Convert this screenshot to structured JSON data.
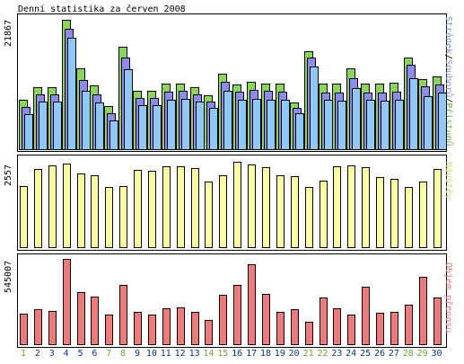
{
  "title": "Denní statistika za červen 2008",
  "colors": {
    "access": "#88d65a",
    "files": "#8c8cf0",
    "hits": "#8cc8f8",
    "visits": "#ffff99",
    "bytes": "#f07a7a",
    "weekend": "#66aa22",
    "weekday": "#003399"
  },
  "chart_data": [
    {
      "type": "bar",
      "categories": [
        "1",
        "2",
        "3",
        "4",
        "5",
        "6",
        "7",
        "8",
        "9",
        "10",
        "11",
        "12",
        "13",
        "14",
        "15",
        "16",
        "17",
        "18",
        "19",
        "20",
        "21",
        "22",
        "23",
        "24",
        "25",
        "26",
        "27",
        "28",
        "29",
        "30"
      ],
      "ymax_label": "21867",
      "ylim": [
        0,
        21867
      ],
      "series": [
        {
          "name": "Přístupů",
          "values": [
            8400,
            10500,
            10500,
            21867,
            13700,
            10900,
            7400,
            17400,
            9900,
            9900,
            11100,
            11100,
            10600,
            9200,
            12900,
            11000,
            11400,
            11200,
            11100,
            8000,
            16600,
            11100,
            11100,
            13700,
            11100,
            11100,
            11300,
            15600,
            11900,
            12300
          ]
        },
        {
          "name": "Souborů",
          "values": [
            7200,
            9300,
            9400,
            20400,
            11800,
            9300,
            6200,
            15500,
            8700,
            8700,
            9800,
            9900,
            9400,
            8200,
            11500,
            9800,
            10100,
            9900,
            9800,
            7100,
            15500,
            9700,
            9700,
            12100,
            9700,
            9700,
            9800,
            14400,
            10700,
            11000
          ]
        },
        {
          "name": "Stránek",
          "values": [
            6000,
            8100,
            8100,
            18800,
            9900,
            8000,
            5000,
            13600,
            7500,
            7500,
            8500,
            8600,
            8200,
            7100,
            9900,
            8400,
            8600,
            8500,
            8400,
            6200,
            14000,
            8400,
            8300,
            10400,
            8400,
            8300,
            8500,
            12000,
            9100,
            9700
          ]
        }
      ]
    },
    {
      "type": "bar",
      "categories": [
        "1",
        "2",
        "3",
        "4",
        "5",
        "6",
        "7",
        "8",
        "9",
        "10",
        "11",
        "12",
        "13",
        "14",
        "15",
        "16",
        "17",
        "18",
        "19",
        "20",
        "21",
        "22",
        "23",
        "24",
        "25",
        "26",
        "27",
        "28",
        "29",
        "30"
      ],
      "ymax_label": "2557",
      "ylim": [
        0,
        2557
      ],
      "series": [
        {
          "name": "Návštěv",
          "values": [
            1850,
            2350,
            2450,
            2500,
            2200,
            2150,
            1800,
            1830,
            2330,
            2300,
            2430,
            2430,
            2380,
            1960,
            2150,
            2557,
            2480,
            2400,
            2170,
            2130,
            1800,
            1990,
            2430,
            2450,
            2400,
            2100,
            2040,
            1800,
            1960,
            2350
          ]
        }
      ]
    },
    {
      "type": "bar",
      "categories": [
        "1",
        "2",
        "3",
        "4",
        "5",
        "6",
        "7",
        "8",
        "9",
        "10",
        "11",
        "12",
        "13",
        "14",
        "15",
        "16",
        "17",
        "18",
        "19",
        "20",
        "21",
        "22",
        "23",
        "24",
        "25",
        "26",
        "27",
        "28",
        "29",
        "30"
      ],
      "ymax_label": "545007",
      "ylim": [
        0,
        545007
      ],
      "series": [
        {
          "name": "Objem přenosu",
          "values": [
            200000,
            228000,
            218000,
            545007,
            333000,
            309000,
            194000,
            381000,
            213000,
            194000,
            231000,
            240000,
            213000,
            158000,
            320000,
            381000,
            514000,
            323000,
            213000,
            228000,
            149000,
            300000,
            235000,
            194000,
            369000,
            204000,
            213000,
            255000,
            434000,
            301000
          ]
        }
      ]
    }
  ],
  "right_labels": {
    "hits_part1": "Stránek",
    "sep1": "/",
    "hits_part2": "Souborů",
    "sep2": "/",
    "hits_part3": "Přístupů",
    "visits": "Návštěv",
    "bytes": "Objem přenosu"
  },
  "weekend_days": [
    "1",
    "7",
    "8",
    "14",
    "15",
    "21",
    "22",
    "28",
    "29"
  ]
}
